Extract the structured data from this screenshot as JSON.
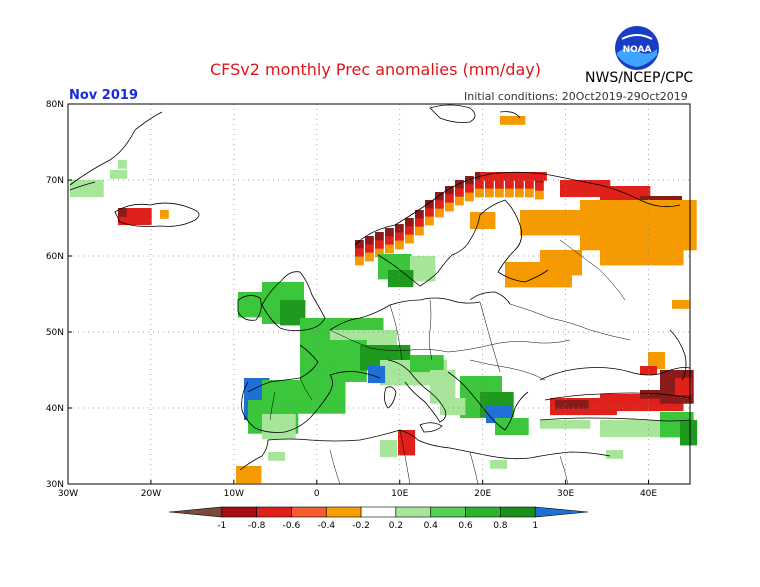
{
  "title": "CFSv2 monthly Prec anomalies (mm/day)",
  "agency": "NWS/NCEP/CPC",
  "logo_text": "NOAA",
  "month": "Nov 2019",
  "initial_conditions": "Initial conditions: 20Oct2019-29Oct2019",
  "map": {
    "lat_labels": [
      "80N",
      "70N",
      "60N",
      "50N",
      "40N",
      "30N"
    ],
    "lon_labels": [
      "30W",
      "20W",
      "10W",
      "0",
      "10E",
      "20E",
      "30E",
      "40E"
    ]
  },
  "colorbar": {
    "levels": [
      "-1",
      "-0.8",
      "-0.6",
      "-0.4",
      "-0.2",
      "0.2",
      "0.4",
      "0.6",
      "0.8",
      "1"
    ],
    "colors": [
      "#7a4a3a",
      "#a50f15",
      "#e0201b",
      "#f45b2e",
      "#f5a000",
      "#ffffff",
      "#a6e59a",
      "#55d055",
      "#2cb32c",
      "#1a8f1a",
      "#1f6fd6"
    ]
  },
  "colors": {
    "dry_strong": "#8b1a1a",
    "dry": "#e0201b",
    "dry_weak": "#f59a00",
    "wet_weak": "#a6e59a",
    "wet": "#3cc63c",
    "wet_strong": "#1f9a1f",
    "very_wet": "#1f6fd6",
    "title": "#e0151b",
    "month": "#1a2bd8"
  }
}
